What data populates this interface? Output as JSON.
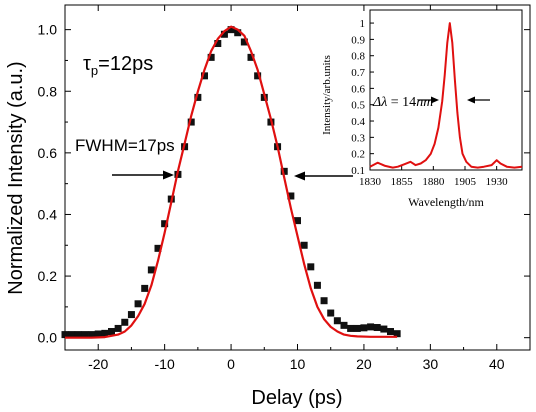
{
  "chart_data": [
    {
      "type": "scatter",
      "xlabel": "Delay (ps)",
      "ylabel": "Normalized Intensity (a.u.)",
      "xlim": [
        -25,
        45
      ],
      "ylim": [
        -0.04,
        1.08
      ],
      "x_ticks": [
        -20,
        -10,
        0,
        10,
        20,
        30,
        40
      ],
      "y_ticks": [
        0.0,
        0.2,
        0.4,
        0.6,
        0.8,
        1.0
      ],
      "x_tick_labels": [
        "-20",
        "-10",
        "0",
        "10",
        "20",
        "30",
        "40"
      ],
      "y_tick_labels": [
        "0.0",
        "0.2",
        "0.4",
        "0.6",
        "0.8",
        "1.0"
      ],
      "annotations": {
        "tau_symbol": "τ",
        "tau_subscript": "p",
        "tau_value": "=12ps",
        "fwhm": "FWHM=17ps"
      },
      "series": [
        {
          "kind": "markers",
          "color": "#111111",
          "points": [
            [
              -25.0,
              0.01
            ],
            [
              -24.0,
              0.01
            ],
            [
              -23.0,
              0.01
            ],
            [
              -22.0,
              0.01
            ],
            [
              -21.0,
              0.01
            ],
            [
              -20.0,
              0.012
            ],
            [
              -19.0,
              0.014
            ],
            [
              -18.0,
              0.02
            ],
            [
              -17.0,
              0.03
            ],
            [
              -16.0,
              0.05
            ],
            [
              -15.0,
              0.075
            ],
            [
              -14.0,
              0.11
            ],
            [
              -13.0,
              0.16
            ],
            [
              -12.0,
              0.22
            ],
            [
              -11.0,
              0.29
            ],
            [
              -10.0,
              0.37
            ],
            [
              -9.0,
              0.45
            ],
            [
              -8.0,
              0.53
            ],
            [
              -7.0,
              0.62
            ],
            [
              -6.0,
              0.7
            ],
            [
              -5.0,
              0.78
            ],
            [
              -4.0,
              0.85
            ],
            [
              -3.0,
              0.91
            ],
            [
              -2.0,
              0.955
            ],
            [
              -1.0,
              0.985
            ],
            [
              0.0,
              1.0
            ],
            [
              1.0,
              0.99
            ],
            [
              2.0,
              0.96
            ],
            [
              3.0,
              0.91
            ],
            [
              4.0,
              0.85
            ],
            [
              5.0,
              0.78
            ],
            [
              6.0,
              0.7
            ],
            [
              7.0,
              0.62
            ],
            [
              8.0,
              0.54
            ],
            [
              9.0,
              0.46
            ],
            [
              10.0,
              0.38
            ],
            [
              11.0,
              0.3
            ],
            [
              12.0,
              0.23
            ],
            [
              13.0,
              0.17
            ],
            [
              14.0,
              0.12
            ],
            [
              15.0,
              0.08
            ],
            [
              16.0,
              0.055
            ],
            [
              17.0,
              0.04
            ],
            [
              18.0,
              0.03
            ],
            [
              19.0,
              0.03
            ],
            [
              20.0,
              0.032
            ],
            [
              21.0,
              0.035
            ],
            [
              22.0,
              0.033
            ],
            [
              23.0,
              0.028
            ],
            [
              24.0,
              0.02
            ],
            [
              25.0,
              0.013
            ]
          ]
        },
        {
          "kind": "line",
          "color": "#e01010",
          "points": [
            [
              -25.0,
              0.0
            ],
            [
              -23.0,
              0.0
            ],
            [
              -21.0,
              0.0
            ],
            [
              -19.0,
              0.002
            ],
            [
              -17.0,
              0.01
            ],
            [
              -16.0,
              0.02
            ],
            [
              -15.0,
              0.04
            ],
            [
              -14.0,
              0.07
            ],
            [
              -13.0,
              0.11
            ],
            [
              -12.0,
              0.17
            ],
            [
              -11.0,
              0.25
            ],
            [
              -10.0,
              0.34
            ],
            [
              -9.0,
              0.44
            ],
            [
              -8.0,
              0.54
            ],
            [
              -7.0,
              0.63
            ],
            [
              -6.0,
              0.72
            ],
            [
              -5.0,
              0.8
            ],
            [
              -4.0,
              0.87
            ],
            [
              -3.0,
              0.93
            ],
            [
              -2.0,
              0.97
            ],
            [
              -1.0,
              0.995
            ],
            [
              0.0,
              1.01
            ],
            [
              1.0,
              1.0
            ],
            [
              2.0,
              0.98
            ],
            [
              3.0,
              0.93
            ],
            [
              4.0,
              0.87
            ],
            [
              5.0,
              0.79
            ],
            [
              6.0,
              0.71
            ],
            [
              7.0,
              0.62
            ],
            [
              8.0,
              0.52
            ],
            [
              9.0,
              0.42
            ],
            [
              10.0,
              0.33
            ],
            [
              11.0,
              0.24
            ],
            [
              12.0,
              0.16
            ],
            [
              13.0,
              0.1
            ],
            [
              14.0,
              0.06
            ],
            [
              15.0,
              0.035
            ],
            [
              16.0,
              0.02
            ],
            [
              17.0,
              0.01
            ],
            [
              18.0,
              0.006
            ],
            [
              19.0,
              0.004
            ],
            [
              21.0,
              0.003
            ],
            [
              23.0,
              0.003
            ],
            [
              25.0,
              0.003
            ]
          ]
        }
      ]
    },
    {
      "type": "line",
      "xlabel": "Wavelength/nm",
      "ylabel": "Intensity/arb.units",
      "xlim": [
        1830,
        1950
      ],
      "ylim": [
        0.1,
        1.08
      ],
      "x_ticks": [
        1830,
        1855,
        1880,
        1905,
        1930
      ],
      "y_ticks": [
        0.1,
        0.2,
        0.3,
        0.4,
        0.5,
        0.6,
        0.7,
        0.8,
        0.9,
        1.0
      ],
      "x_tick_labels": [
        "1830",
        "1855",
        "1880",
        "1905",
        "1930"
      ],
      "y_tick_labels": [
        "0.1",
        "0.2",
        "0.3",
        "0.4",
        "0.5",
        "0.6",
        "0.7",
        "0.8",
        "0.9",
        "1"
      ],
      "annotations": {
        "delta_lambda_symbol": "Δλ",
        "delta_lambda_eq": " = 14",
        "delta_lambda_unit": "nm"
      },
      "series": [
        {
          "kind": "line",
          "color": "#e01010",
          "points": [
            [
              1830,
              0.12
            ],
            [
              1836,
              0.145
            ],
            [
              1842,
              0.125
            ],
            [
              1848,
              0.115
            ],
            [
              1852,
              0.12
            ],
            [
              1857,
              0.135
            ],
            [
              1862,
              0.15
            ],
            [
              1866,
              0.13
            ],
            [
              1870,
              0.14
            ],
            [
              1874,
              0.16
            ],
            [
              1878,
              0.2
            ],
            [
              1881,
              0.26
            ],
            [
              1884,
              0.36
            ],
            [
              1887,
              0.52
            ],
            [
              1889,
              0.68
            ],
            [
              1891,
              0.88
            ],
            [
              1893,
              1.0
            ],
            [
              1895,
              0.88
            ],
            [
              1897,
              0.65
            ],
            [
              1899,
              0.45
            ],
            [
              1901,
              0.3
            ],
            [
              1903,
              0.2
            ],
            [
              1906,
              0.15
            ],
            [
              1910,
              0.12
            ],
            [
              1915,
              0.115
            ],
            [
              1920,
              0.12
            ],
            [
              1926,
              0.13
            ],
            [
              1930,
              0.16
            ],
            [
              1933,
              0.14
            ],
            [
              1938,
              0.12
            ],
            [
              1944,
              0.115
            ],
            [
              1950,
              0.12
            ]
          ]
        }
      ]
    }
  ]
}
